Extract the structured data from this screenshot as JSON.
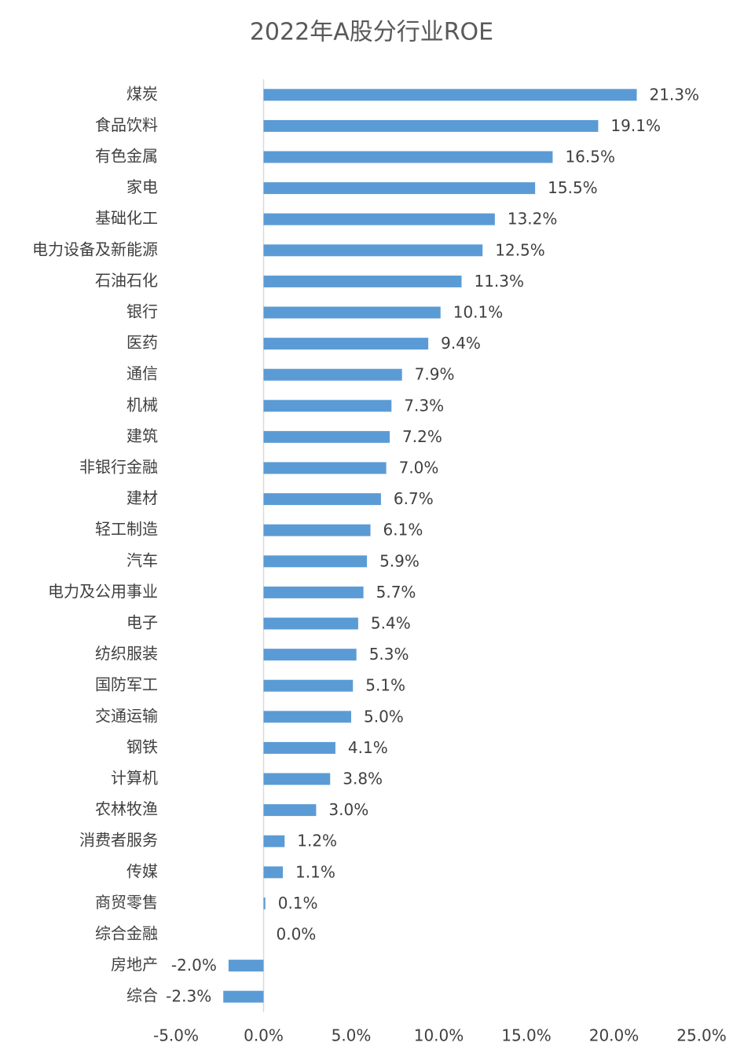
{
  "chart_data": {
    "type": "bar",
    "orientation": "horizontal",
    "title": "2022年A股分行业ROE",
    "categories": [
      "煤炭",
      "食品饮料",
      "有色金属",
      "家电",
      "基础化工",
      "电力设备及新能源",
      "石油石化",
      "银行",
      "医药",
      "通信",
      "机械",
      "建筑",
      "非银行金融",
      "建材",
      "轻工制造",
      "汽车",
      "电力及公用事业",
      "电子",
      "纺织服装",
      "国防军工",
      "交通运输",
      "钢铁",
      "计算机",
      "农林牧渔",
      "消费者服务",
      "传媒",
      "商贸零售",
      "综合金融",
      "房地产",
      "综合"
    ],
    "values": [
      21.3,
      19.1,
      16.5,
      15.5,
      13.2,
      12.5,
      11.3,
      10.1,
      9.4,
      7.9,
      7.3,
      7.2,
      7.0,
      6.7,
      6.1,
      5.9,
      5.7,
      5.4,
      5.3,
      5.1,
      5.0,
      4.1,
      3.8,
      3.0,
      1.2,
      1.1,
      0.1,
      0.0,
      -2.0,
      -2.3
    ],
    "value_labels": [
      "21.3%",
      "19.1%",
      "16.5%",
      "15.5%",
      "13.2%",
      "12.5%",
      "11.3%",
      "10.1%",
      "9.4%",
      "7.9%",
      "7.3%",
      "7.2%",
      "7.0%",
      "6.7%",
      "6.1%",
      "5.9%",
      "5.7%",
      "5.4%",
      "5.3%",
      "5.1%",
      "5.0%",
      "4.1%",
      "3.8%",
      "3.0%",
      "1.2%",
      "1.1%",
      "0.1%",
      "0.0%",
      "-2.0%",
      "-2.3%"
    ],
    "color": "#5b9bd5",
    "xlim": [
      -5,
      25
    ],
    "xticks": [
      {
        "value": -5,
        "label": "-5.0%"
      },
      {
        "value": 0,
        "label": "0.0%"
      },
      {
        "value": 5,
        "label": "5.0%"
      },
      {
        "value": 10,
        "label": "10.0%"
      },
      {
        "value": 15,
        "label": "15.0%"
      },
      {
        "value": 20,
        "label": "20.0%"
      },
      {
        "value": 25,
        "label": "25.0%"
      }
    ],
    "grid": false
  }
}
